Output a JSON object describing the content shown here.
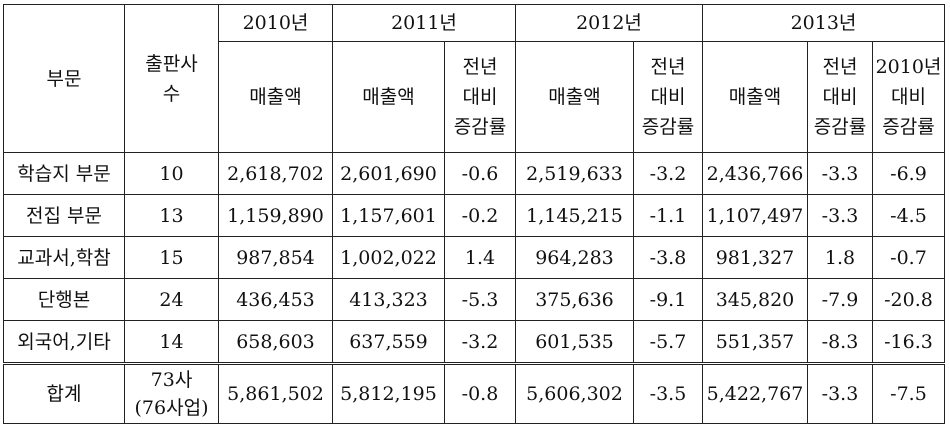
{
  "table": {
    "header": {
      "category": "부문",
      "publishers": "출판사\n수",
      "years": [
        "2010년",
        "2011년",
        "2012년",
        "2013년"
      ],
      "sales": "매출액",
      "yoy": "전년\n대비\n증감률",
      "vs2010": "2010년\n대비\n증감률"
    },
    "rows": [
      {
        "category": "학습지 부문",
        "publishers": "10",
        "s2010": "2,618,702",
        "s2011": "2,601,690",
        "y2011": "-0.6",
        "s2012": "2,519,633",
        "y2012": "-3.2",
        "s2013": "2,436,766",
        "y2013": "-3.3",
        "v2010": "-6.9"
      },
      {
        "category": "전집 부문",
        "publishers": "13",
        "s2010": "1,159,890",
        "s2011": "1,157,601",
        "y2011": "-0.2",
        "s2012": "1,145,215",
        "y2012": "-1.1",
        "s2013": "1,107,497",
        "y2013": "-3.3",
        "v2010": "-4.5"
      },
      {
        "category": "교과서,학참",
        "publishers": "15",
        "s2010": "987,854",
        "s2011": "1,002,022",
        "y2011": "1.4",
        "s2012": "964,283",
        "y2012": "-3.8",
        "s2013": "981,327",
        "y2013": "1.8",
        "v2010": "-0.7"
      },
      {
        "category": "단행본",
        "publishers": "24",
        "s2010": "436,453",
        "s2011": "413,323",
        "y2011": "-5.3",
        "s2012": "375,636",
        "y2012": "-9.1",
        "s2013": "345,820",
        "y2013": "-7.9",
        "v2010": "-20.8"
      },
      {
        "category": "외국어,기타",
        "publishers": "14",
        "s2010": "658,603",
        "s2011": "637,559",
        "y2011": "-3.2",
        "s2012": "601,535",
        "y2012": "-5.7",
        "s2013": "551,357",
        "y2013": "-8.3",
        "v2010": "-16.3"
      }
    ],
    "total": {
      "category": "합계",
      "publishers": "73사\n(76사업)",
      "s2010": "5,861,502",
      "s2011": "5,812,195",
      "y2011": "-0.8",
      "s2012": "5,606,302",
      "y2012": "-3.5",
      "s2013": "5,422,767",
      "y2013": "-3.3",
      "v2010": "-7.5"
    }
  }
}
